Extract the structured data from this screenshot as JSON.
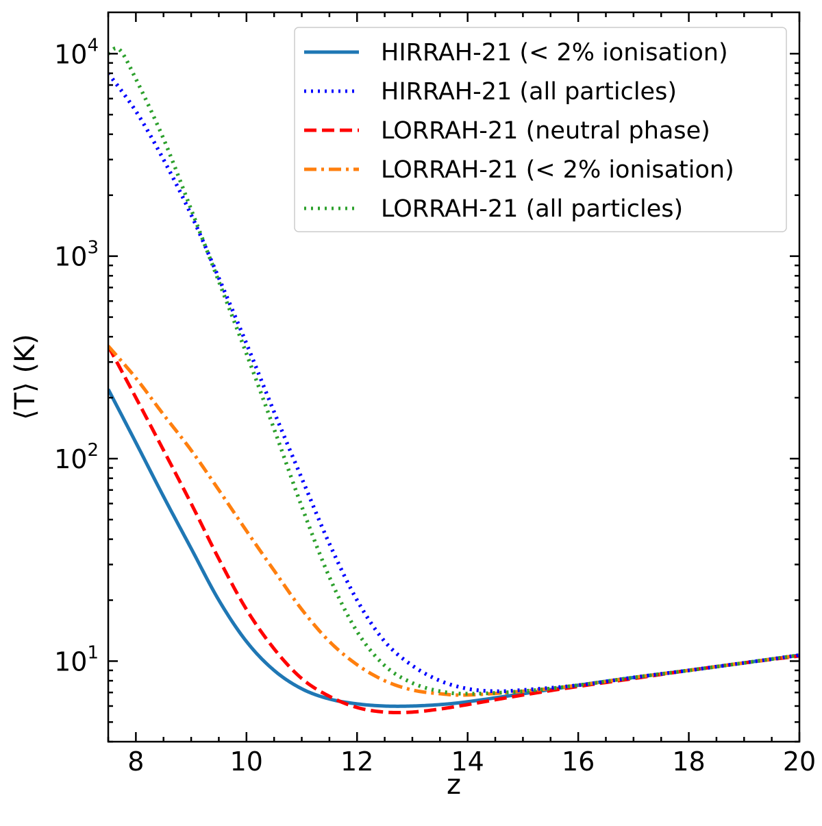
{
  "chart_data": {
    "type": "line",
    "title": "",
    "xlabel": "z",
    "ylabel": "⟨T⟩ (K)",
    "xscale": "linear",
    "yscale": "log",
    "xlim": [
      7.5,
      20
    ],
    "ylim": [
      4.0,
      16000
    ],
    "xticks": [
      8,
      10,
      12,
      14,
      16,
      18,
      20
    ],
    "xtick_labels": [
      "8",
      "10",
      "12",
      "14",
      "16",
      "18",
      "20"
    ],
    "yticks": [
      10,
      100,
      1000,
      10000
    ],
    "ytick_labels": [
      {
        "base": "10",
        "exp": "1"
      },
      {
        "base": "10",
        "exp": "2"
      },
      {
        "base": "10",
        "exp": "3"
      },
      {
        "base": "10",
        "exp": "4"
      }
    ],
    "grid": false,
    "legend_position": "top-right",
    "series": [
      {
        "name": "HIRRAH-21 (< 2% ionisation)",
        "color": "#1f77b4",
        "style": "solid",
        "x": [
          7.5,
          8,
          8.5,
          9,
          9.5,
          10,
          10.5,
          11,
          11.5,
          12,
          12.5,
          13,
          13.5,
          14,
          15,
          16,
          17,
          18,
          19,
          20
        ],
        "y": [
          220,
          120,
          65,
          36,
          20,
          12.5,
          9.0,
          7.3,
          6.5,
          6.15,
          6.0,
          6.0,
          6.1,
          6.3,
          6.9,
          7.6,
          8.3,
          9.0,
          9.8,
          10.7
        ]
      },
      {
        "name": "HIRRAH-21 (all particles)",
        "color": "#0000ff",
        "style": "dotted",
        "x": [
          7.5,
          8,
          8.5,
          9,
          9.5,
          10,
          10.5,
          11,
          11.5,
          12,
          12.5,
          13,
          13.5,
          14,
          14.5,
          15,
          16,
          17,
          18,
          19,
          20
        ],
        "y": [
          8000,
          5200,
          3000,
          1600,
          780,
          370,
          170,
          80,
          38,
          20,
          12.5,
          9.5,
          8.0,
          7.3,
          7.1,
          7.2,
          7.6,
          8.3,
          9.0,
          9.8,
          10.7
        ]
      },
      {
        "name": "LORRAH-21 (neutral phase)",
        "color": "#ff0000",
        "style": "dashed",
        "x": [
          7.5,
          8,
          8.5,
          9,
          9.5,
          10,
          10.5,
          11,
          11.5,
          12,
          12.5,
          13,
          13.5,
          14,
          15,
          16,
          17,
          18,
          19,
          20
        ],
        "y": [
          360,
          200,
          110,
          60,
          32,
          18,
          11.5,
          8.2,
          6.7,
          5.9,
          5.6,
          5.6,
          5.8,
          6.1,
          6.8,
          7.5,
          8.2,
          9.0,
          9.8,
          10.6
        ]
      },
      {
        "name": "LORRAH-21 (< 2% ionisation)",
        "color": "#ff7f0e",
        "style": "dashdot",
        "x": [
          7.5,
          8,
          8.5,
          9,
          9.5,
          10,
          10.5,
          11,
          11.5,
          12,
          12.5,
          13,
          13.5,
          14,
          15,
          16,
          17,
          18,
          19,
          20
        ],
        "y": [
          360,
          250,
          165,
          110,
          70,
          44,
          28,
          18,
          12.5,
          9.6,
          8.0,
          7.2,
          6.9,
          6.8,
          7.1,
          7.6,
          8.3,
          9.0,
          9.8,
          10.7
        ]
      },
      {
        "name": "LORRAH-21 (all particles)",
        "color": "#2ca02c",
        "style": "dotted",
        "x": [
          7.5,
          7.7,
          8,
          8.5,
          9,
          9.5,
          10,
          10.5,
          11,
          11.5,
          12,
          12.5,
          13,
          13.5,
          14,
          15,
          16,
          17,
          18,
          19,
          20
        ],
        "y": [
          10000,
          10500,
          7500,
          3800,
          1700,
          750,
          330,
          140,
          58,
          26,
          14,
          9.5,
          7.8,
          7.1,
          6.9,
          7.1,
          7.6,
          8.3,
          9.0,
          9.8,
          10.7
        ]
      }
    ]
  }
}
